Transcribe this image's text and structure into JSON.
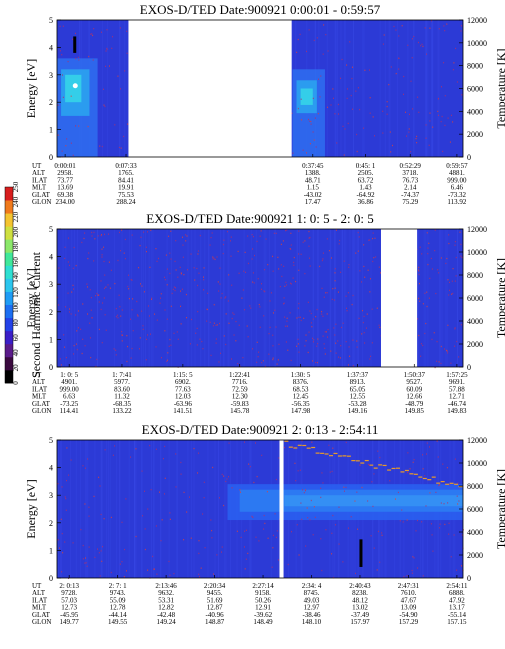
{
  "chart_data": {
    "type": "heatmap",
    "colorbar": {
      "label": "Second Harmonic Current",
      "ticks": [
        "0",
        "20",
        "40",
        "60",
        "80",
        "100",
        "120",
        "140",
        "160",
        "180",
        "200",
        "220",
        "240",
        "250"
      ],
      "colors": [
        "#000000",
        "#3a0a3f",
        "#5a1b8a",
        "#3b1fc8",
        "#2442e8",
        "#1d6ff2",
        "#1f9cf5",
        "#2cc6ee",
        "#2fe0d2",
        "#40e89a",
        "#8be86a",
        "#cfe040",
        "#f4c430",
        "#f07a1c",
        "#d81e1e"
      ]
    },
    "panels": [
      {
        "title": "EXOS-D/TED   Date:900921  0:00:01 - 0:59:57",
        "ylabel": "Energy [eV]",
        "y2label": "Temperature [K]",
        "ylim": [
          0,
          5
        ],
        "yticks": [
          "0",
          "1",
          "2",
          "3",
          "4",
          "5"
        ],
        "y2lim": [
          0,
          12000
        ],
        "y2ticks": [
          "0",
          "2000",
          "4000",
          "6000",
          "8000",
          "10000",
          "12000"
        ],
        "data_gaps": [
          [
            0.176,
            0.578
          ]
        ],
        "eph_labels": [
          "UT",
          "ALT",
          "ILAT",
          "MLT",
          "GLAT",
          "GLON"
        ],
        "eph_columns": [
          [
            "0:00:01",
            "2958.",
            "73.77",
            "13.69",
            "69.38",
            "234.00"
          ],
          [
            "0:07:33",
            "1765.",
            "84.41",
            "19.91",
            "75.53",
            "288.24"
          ],
          [
            "0:37:45",
            "1388.",
            "48.71",
            "1.15",
            "-43.02",
            "17.47"
          ],
          [
            "0:45: 1",
            "2505.",
            "63.72",
            "1.43",
            "-64.92",
            "36.86"
          ],
          [
            "0:52:29",
            "3718.",
            "76.73",
            "2.14",
            "-74.37",
            "75.29"
          ],
          [
            "0:59:57",
            "4881.",
            "999.00",
            "6.46",
            "-73.32",
            "113.92"
          ]
        ]
      },
      {
        "title": "EXOS-D/TED   Date:900921  1: 0: 5 - 2: 0: 5",
        "ylabel": "Energy [eV]",
        "y2label": "Temperature [K]",
        "ylim": [
          0,
          5
        ],
        "yticks": [
          "0",
          "1",
          "2",
          "3",
          "4",
          "5"
        ],
        "y2lim": [
          0,
          12000
        ],
        "y2ticks": [
          "0",
          "2000",
          "4000",
          "6000",
          "8000",
          "10000",
          "12000"
        ],
        "data_gaps": [
          [
            0.798,
            0.887
          ]
        ],
        "eph_labels": [
          "UT",
          "ALT",
          "ILAT",
          "MLT",
          "GLAT",
          "GLON"
        ],
        "eph_columns": [
          [
            "1: 0: 5",
            "4901.",
            "999.00",
            "6.63",
            "-73.25",
            "114.41"
          ],
          [
            "1: 7:41",
            "5977.",
            "83.60",
            "11.32",
            "-68.35",
            "133.22"
          ],
          [
            "1:15: 5",
            "6902.",
            "77.63",
            "12.03",
            "-63.96",
            "141.51"
          ],
          [
            "1:22:41",
            "7716.",
            "72.59",
            "12.30",
            "-59.83",
            "145.78"
          ],
          [
            "1:30: 5",
            "8376.",
            "68.53",
            "12.45",
            "-56.35",
            "147.98"
          ],
          [
            "1:37:37",
            "8913.",
            "65.05",
            "12.55",
            "-53.28",
            "149.16"
          ],
          [
            "1:50:37",
            "9527.",
            "60.09",
            "12.66",
            "-48.79",
            "149.85"
          ],
          [
            "1:57:25",
            "9691.",
            "57.88",
            "12.71",
            "-46.74",
            "149.83"
          ]
        ]
      },
      {
        "title": "EXOS-D/TED   Date:900921  2: 0:13 - 2:54:11",
        "ylabel": "Energy [eV]",
        "y2label": "Temperature [K]",
        "ylim": [
          0,
          5
        ],
        "yticks": [
          "0",
          "1",
          "2",
          "3",
          "4",
          "5"
        ],
        "y2lim": [
          0,
          12000
        ],
        "y2ticks": [
          "0",
          "2000",
          "4000",
          "6000",
          "8000",
          "10000",
          "12000"
        ],
        "data_gaps": [
          [
            0.548,
            0.558
          ]
        ],
        "eph_labels": [
          "UT",
          "ALT",
          "ILAT",
          "MLT",
          "GLAT",
          "GLON"
        ],
        "eph_columns": [
          [
            "2: 0:13",
            "9728.",
            "57.03",
            "12.73",
            "-45.95",
            "149.77"
          ],
          [
            "2: 7: 1",
            "9743.",
            "55.09",
            "12.78",
            "-44.14",
            "149.55"
          ],
          [
            "2:13:46",
            "9632.",
            "53.31",
            "12.82",
            "-42.48",
            "149.24"
          ],
          [
            "2:20:34",
            "9455.",
            "51.69",
            "12.87",
            "-40.96",
            "148.87"
          ],
          [
            "2:27:14",
            "9158.",
            "50.26",
            "12.91",
            "-39.62",
            "148.49"
          ],
          [
            "2:34: 4",
            "8745.",
            "49.03",
            "12.97",
            "-38.46",
            "148.10"
          ],
          [
            "2:40:43",
            "8238.",
            "48.12",
            "13.02",
            "-37.49",
            "157.97"
          ],
          [
            "2:47:31",
            "7610.",
            "47.67",
            "13.09",
            "-54.90",
            "157.29"
          ],
          [
            "2:54:11",
            "6888.",
            "47.92",
            "13.17",
            "-55.14",
            "157.15"
          ]
        ]
      }
    ]
  }
}
